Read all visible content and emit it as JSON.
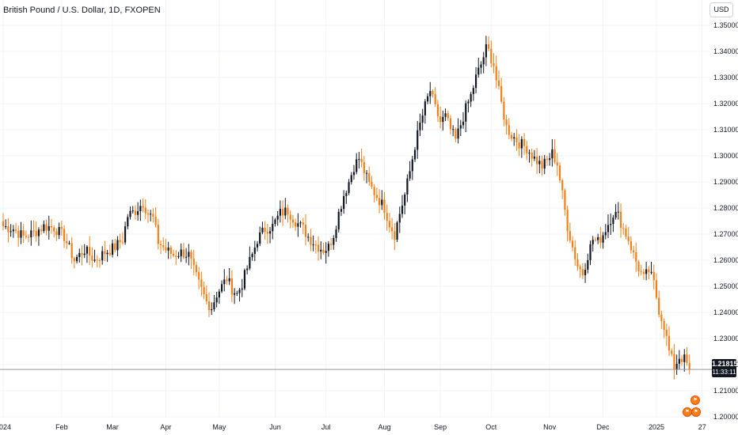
{
  "header": {
    "title": "British Pound / U.S. Dollar, 1D, FXOPEN",
    "currency_button": "USD"
  },
  "price_tag": {
    "price": "1.21815",
    "countdown": "11:33:11"
  },
  "colors": {
    "up": "#131722",
    "down": "#f57f17",
    "grid": "#f0f3fa",
    "price_line": "#9598a1"
  },
  "icons": [
    "flag-event-icon",
    "flag-event-icon",
    "flag-event-icon"
  ],
  "chart_data": {
    "type": "candlestick",
    "title": "British Pound / U.S. Dollar, 1D, FXOPEN",
    "ylim": [
      1.195,
      1.3535
    ],
    "y_ticks": [
      "1.20000",
      "1.21000",
      "1.22000",
      "1.23000",
      "1.24000",
      "1.25000",
      "1.26000",
      "1.27000",
      "1.28000",
      "1.29000",
      "1.30000",
      "1.31000",
      "1.32000",
      "1.33000",
      "1.34000",
      "1.35000"
    ],
    "x_ticks": [
      {
        "label": "2024",
        "bar": 0
      },
      {
        "label": "Feb",
        "bar": 23
      },
      {
        "label": "Mar",
        "bar": 43
      },
      {
        "label": "Apr",
        "bar": 64
      },
      {
        "label": "May",
        "bar": 85
      },
      {
        "label": "Jun",
        "bar": 107
      },
      {
        "label": "Jul",
        "bar": 127
      },
      {
        "label": "Aug",
        "bar": 150
      },
      {
        "label": "Sep",
        "bar": 172
      },
      {
        "label": "Oct",
        "bar": 192
      },
      {
        "label": "Nov",
        "bar": 215
      },
      {
        "label": "Dec",
        "bar": 236
      },
      {
        "label": "2025",
        "bar": 257
      },
      {
        "label": "27",
        "bar": 275
      }
    ],
    "last_price": 1.21815,
    "grid": true,
    "x_anchor_points": [
      [
        0,
        1.273
      ],
      [
        4,
        1.272
      ],
      [
        8,
        1.269
      ],
      [
        12,
        1.2705
      ],
      [
        16,
        1.273
      ],
      [
        20,
        1.2725
      ],
      [
        24,
        1.269
      ],
      [
        28,
        1.26
      ],
      [
        32,
        1.264
      ],
      [
        36,
        1.26
      ],
      [
        40,
        1.263
      ],
      [
        44,
        1.265
      ],
      [
        47,
        1.268
      ],
      [
        49,
        1.277
      ],
      [
        52,
        1.279
      ],
      [
        55,
        1.282
      ],
      [
        57,
        1.278
      ],
      [
        59,
        1.276
      ],
      [
        61,
        1.267
      ],
      [
        64,
        1.264
      ],
      [
        67,
        1.262
      ],
      [
        70,
        1.263
      ],
      [
        73,
        1.262
      ],
      [
        75,
        1.256
      ],
      [
        77,
        1.251
      ],
      [
        80,
        1.244
      ],
      [
        82,
        1.242
      ],
      [
        84,
        1.247
      ],
      [
        86,
        1.25
      ],
      [
        88,
        1.253
      ],
      [
        90,
        1.249
      ],
      [
        92,
        1.247
      ],
      [
        94,
        1.251
      ],
      [
        96,
        1.257
      ],
      [
        98,
        1.262
      ],
      [
        100,
        1.268
      ],
      [
        103,
        1.272
      ],
      [
        106,
        1.273
      ],
      [
        109,
        1.278
      ],
      [
        112,
        1.279
      ],
      [
        115,
        1.275
      ],
      [
        118,
        1.272
      ],
      [
        120,
        1.269
      ],
      [
        123,
        1.266
      ],
      [
        126,
        1.264
      ],
      [
        128,
        1.265
      ],
      [
        130,
        1.27
      ],
      [
        132,
        1.278
      ],
      [
        134,
        1.285
      ],
      [
        136,
        1.29
      ],
      [
        138,
        1.296
      ],
      [
        140,
        1.299
      ],
      [
        142,
        1.294
      ],
      [
        144,
        1.289
      ],
      [
        146,
        1.286
      ],
      [
        148,
        1.283
      ],
      [
        150,
        1.28
      ],
      [
        152,
        1.274
      ],
      [
        154,
        1.27
      ],
      [
        156,
        1.278
      ],
      [
        158,
        1.285
      ],
      [
        160,
        1.294
      ],
      [
        162,
        1.304
      ],
      [
        164,
        1.312
      ],
      [
        166,
        1.319
      ],
      [
        168,
        1.325
      ],
      [
        170,
        1.318
      ],
      [
        172,
        1.313
      ],
      [
        174,
        1.315
      ],
      [
        176,
        1.31
      ],
      [
        178,
        1.306
      ],
      [
        180,
        1.312
      ],
      [
        182,
        1.318
      ],
      [
        184,
        1.323
      ],
      [
        186,
        1.33
      ],
      [
        188,
        1.335
      ],
      [
        190,
        1.341
      ],
      [
        191,
        1.34
      ],
      [
        193,
        1.335
      ],
      [
        194,
        1.329
      ],
      [
        196,
        1.32
      ],
      [
        198,
        1.311
      ],
      [
        200,
        1.308
      ],
      [
        203,
        1.305
      ],
      [
        206,
        1.303
      ],
      [
        209,
        1.299
      ],
      [
        212,
        1.296
      ],
      [
        214,
        1.298
      ],
      [
        216,
        1.301
      ],
      [
        218,
        1.297
      ],
      [
        220,
        1.285
      ],
      [
        222,
        1.273
      ],
      [
        224,
        1.265
      ],
      [
        226,
        1.258
      ],
      [
        228,
        1.255
      ],
      [
        230,
        1.262
      ],
      [
        232,
        1.268
      ],
      [
        234,
        1.267
      ],
      [
        236,
        1.27
      ],
      [
        238,
        1.274
      ],
      [
        240,
        1.278
      ],
      [
        242,
        1.277
      ],
      [
        244,
        1.272
      ],
      [
        246,
        1.268
      ],
      [
        248,
        1.262
      ],
      [
        250,
        1.257
      ],
      [
        252,
        1.253
      ],
      [
        254,
        1.256
      ],
      [
        256,
        1.251
      ],
      [
        258,
        1.241
      ],
      [
        260,
        1.235
      ],
      [
        262,
        1.225
      ],
      [
        264,
        1.219
      ],
      [
        266,
        1.223
      ],
      [
        268,
        1.222
      ],
      [
        270,
        1.2182
      ]
    ]
  }
}
